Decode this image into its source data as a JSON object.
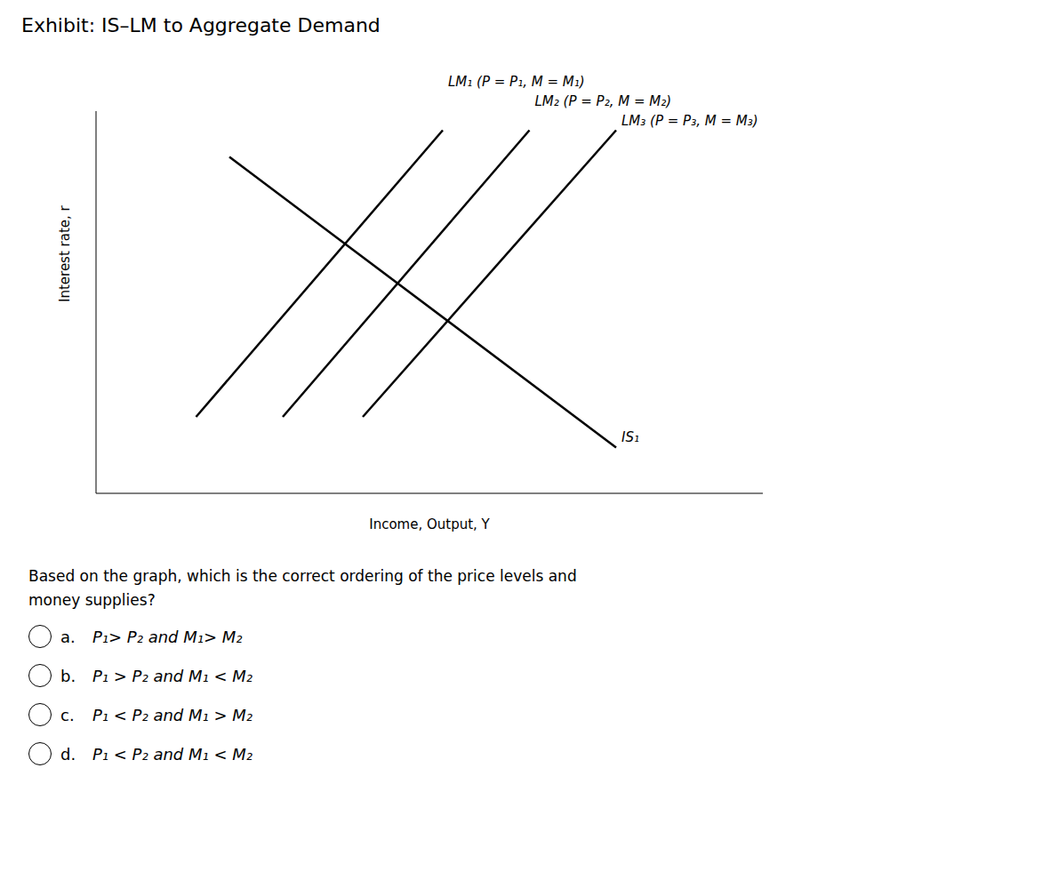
{
  "chart_data": {
    "type": "line",
    "title": "Exhibit: IS–LM to Aggregate Demand",
    "x_label": "Income, Output, Y",
    "y_label": "Interest rate, r",
    "xlim": [
      0,
      10
    ],
    "ylim": [
      0,
      10
    ],
    "tick_labels": false,
    "grid": false,
    "color": "#000000",
    "series": [
      {
        "name": "IS₁",
        "x": [
          2.0,
          7.8
        ],
        "values": [
          8.8,
          1.2
        ]
      },
      {
        "name": "LM₁ (P = P₁, M = M₁)",
        "x": [
          1.5,
          5.2
        ],
        "values": [
          2.0,
          9.5
        ]
      },
      {
        "name": "LM₂ (P = P₂, M = M₂)",
        "x": [
          2.8,
          6.5
        ],
        "values": [
          2.0,
          9.5
        ]
      },
      {
        "name": "LM₃ (P = P₃, M = M₃)",
        "x": [
          4.0,
          7.8
        ],
        "values": [
          2.0,
          9.5
        ]
      }
    ],
    "question": "Based on the graph, which is the correct ordering of the price levels and\nmoney supplies?",
    "options": [
      {
        "letter": "a.",
        "text": "P₁> P₂ and M₁> M₂"
      },
      {
        "letter": "b.",
        "text": "P₁ > P₂ and M₁ < M₂"
      },
      {
        "letter": "c.",
        "text": "P₁ < P₂ and M₁ > M₂"
      },
      {
        "letter": "d.",
        "text": "P₁ < P₂ and M₁ < M₂"
      }
    ]
  }
}
